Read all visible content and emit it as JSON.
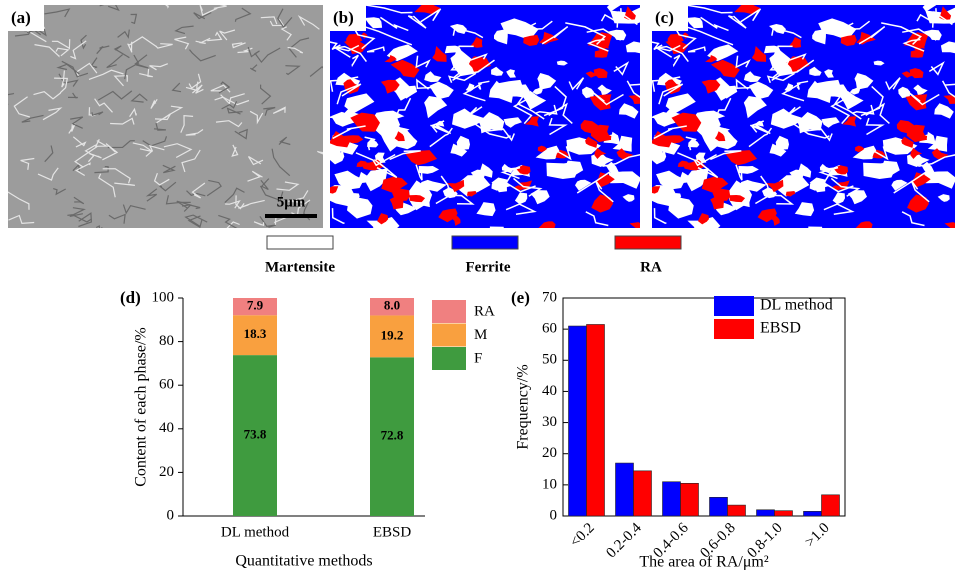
{
  "figure": {
    "panel_labels": [
      "(a)",
      "(b)",
      "(c)"
    ],
    "scale_bar": "5μm",
    "phase_legend": [
      {
        "name": "Martensite",
        "color": "#ffffff"
      },
      {
        "name": "Ferrite",
        "color": "#0000ff"
      },
      {
        "name": "RA",
        "color": "#ff0000"
      }
    ]
  },
  "chart_data": [
    {
      "type": "stacked-bar",
      "panel": "(d)",
      "x_label": "Quantitative methods",
      "y_label": "Content of each phase/%",
      "categories": [
        "DL method",
        "EBSD"
      ],
      "series": [
        {
          "name": "F",
          "color": "#3f9b3f",
          "values": [
            73.8,
            72.8
          ],
          "value_labels": [
            "73.8",
            "72.8"
          ]
        },
        {
          "name": "M",
          "color": "#f9a03f",
          "values": [
            18.3,
            19.2
          ],
          "value_labels": [
            "18.3",
            "19.2"
          ]
        },
        {
          "name": "RA",
          "color": "#f08080",
          "values": [
            7.9,
            8.0
          ],
          "value_labels": [
            "7.9",
            "8.0"
          ]
        }
      ],
      "ylim": [
        0,
        100
      ],
      "yticks": [
        0,
        20,
        40,
        60,
        80,
        100
      ],
      "legend": "right"
    },
    {
      "type": "bar",
      "panel": "(e)",
      "x_label": "The area of RA/μm²",
      "y_label": "Frequency/%",
      "categories": [
        "<0.2",
        "0.2-0.4",
        "0.4-0.6",
        "0.6-0.8",
        "0.8-1.0",
        ">1.0"
      ],
      "series": [
        {
          "name": "DL method",
          "color": "#0000ff",
          "values": [
            61,
            17,
            11,
            6,
            2,
            1.5
          ]
        },
        {
          "name": "EBSD",
          "color": "#ff0000",
          "values": [
            61.5,
            14.5,
            10.5,
            3.5,
            1.7,
            6.8
          ]
        }
      ],
      "ylim": [
        0,
        70
      ],
      "yticks": [
        0,
        10,
        20,
        30,
        40,
        50,
        60,
        70
      ],
      "legend": "upper right"
    }
  ]
}
